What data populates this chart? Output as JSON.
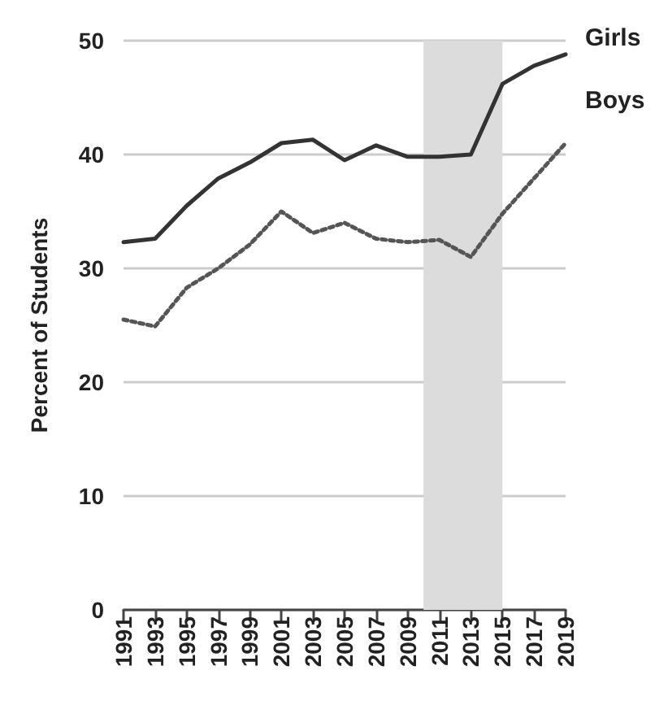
{
  "chart_data": {
    "type": "line",
    "ylabel": "Percent of Students",
    "x": [
      1991,
      1993,
      1995,
      1997,
      1999,
      2001,
      2003,
      2005,
      2007,
      2009,
      2011,
      2013,
      2015,
      2017,
      2019
    ],
    "series": [
      {
        "name": "Girls",
        "color": "#333333",
        "line_style": "solid",
        "values": [
          32.3,
          32.6,
          35.5,
          37.9,
          39.3,
          41.0,
          41.3,
          39.5,
          40.8,
          39.8,
          39.8,
          40.0,
          46.2,
          47.8,
          48.8
        ]
      },
      {
        "name": "Boys",
        "color": "#555555",
        "line_style": "dotted",
        "values": [
          25.5,
          24.9,
          28.3,
          30.0,
          32.1,
          35.0,
          33.1,
          34.0,
          32.6,
          32.3,
          32.5,
          31.0,
          34.8,
          37.9,
          41.0
        ]
      }
    ],
    "xlim": [
      1991,
      2019
    ],
    "xticks": [
      1991,
      1993,
      1995,
      1997,
      1999,
      2001,
      2003,
      2005,
      2007,
      2009,
      2011,
      2013,
      2015,
      2017,
      2019
    ],
    "ylim": [
      0,
      50
    ],
    "yticks": [
      0,
      10,
      20,
      30,
      40,
      50
    ],
    "bands": [
      {
        "axis": "x",
        "from": 2010,
        "to": 2015,
        "color": "#dcdcdc"
      }
    ],
    "grid": "y",
    "legend": false,
    "marker": "none"
  }
}
